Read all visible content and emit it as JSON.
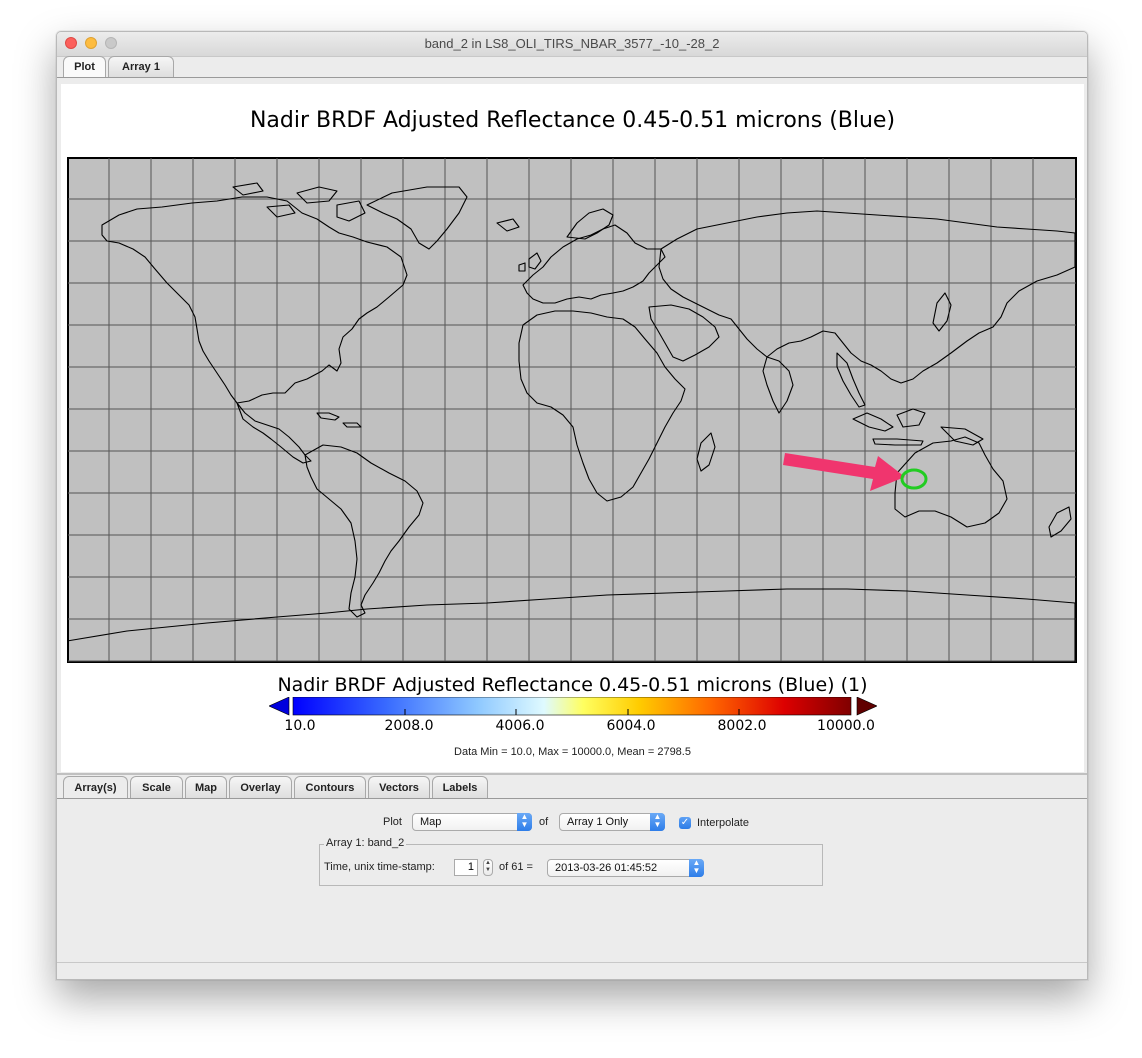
{
  "window": {
    "title": "band_2 in LS8_OLI_TIRS_NBAR_3577_-10_-28_2"
  },
  "top_tabs": [
    "Plot",
    "Array 1"
  ],
  "plot": {
    "title": "Nadir BRDF Adjusted Reflectance 0.45-0.51 microns (Blue)",
    "colorbar_title": "Nadir BRDF Adjusted Reflectance 0.45-0.51 microns (Blue) (1)",
    "colorbar_ticks": [
      "10.0",
      "2008.0",
      "4006.0",
      "6004.0",
      "8002.0",
      "10000.0"
    ],
    "stats": "Data Min = 10.0, Max = 10000.0, Mean = 2798.5",
    "map_background": "#c0c0c0",
    "annotation_arrow_color": "#f0356e",
    "annotation_circle_color": "#22cc22"
  },
  "bottom_tabs": [
    "Array(s)",
    "Scale",
    "Map",
    "Overlay",
    "Contours",
    "Vectors",
    "Labels"
  ],
  "controls": {
    "plot_label": "Plot",
    "plot_value": "Map",
    "of_label": "of",
    "array_value": "Array 1 Only",
    "interpolate_label": "Interpolate",
    "interpolate_checked": true,
    "group_title": "Array 1: band_2",
    "time_label": "Time, unix time-stamp:",
    "time_index": "1",
    "of_count": "of 61 =",
    "time_value": "2013-03-26 01:45:52"
  }
}
